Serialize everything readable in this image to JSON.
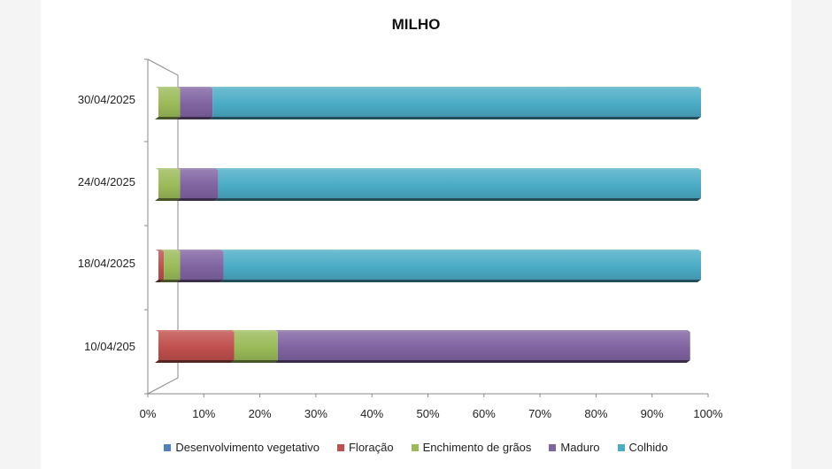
{
  "chart_data": {
    "type": "bar",
    "orientation": "horizontal",
    "stacked": true,
    "title": "MILHO",
    "categories": [
      "30/04/2025",
      "24/04/2025",
      "18/04/2025",
      "10/04/205"
    ],
    "series": [
      {
        "name": "Desenvolvimento vegetativo",
        "color": "#4f81bd",
        "values": [
          0,
          0,
          0,
          0
        ]
      },
      {
        "name": "Floração",
        "color": "#c0504d",
        "values": [
          0,
          0,
          1,
          14
        ]
      },
      {
        "name": "Enchimento de grãos",
        "color": "#9bbb59",
        "values": [
          4,
          4,
          3,
          8
        ]
      },
      {
        "name": "Maduro",
        "color": "#8064a2",
        "values": [
          6,
          7,
          8,
          76
        ]
      },
      {
        "name": "Colhido",
        "color": "#4bacc6",
        "values": [
          90,
          89,
          88,
          0
        ]
      }
    ],
    "x_ticks": [
      "0%",
      "10%",
      "20%",
      "30%",
      "40%",
      "50%",
      "60%",
      "70%",
      "80%",
      "90%",
      "100%"
    ],
    "xlim": [
      0,
      100
    ],
    "grid": false,
    "legend_position": "bottom"
  }
}
